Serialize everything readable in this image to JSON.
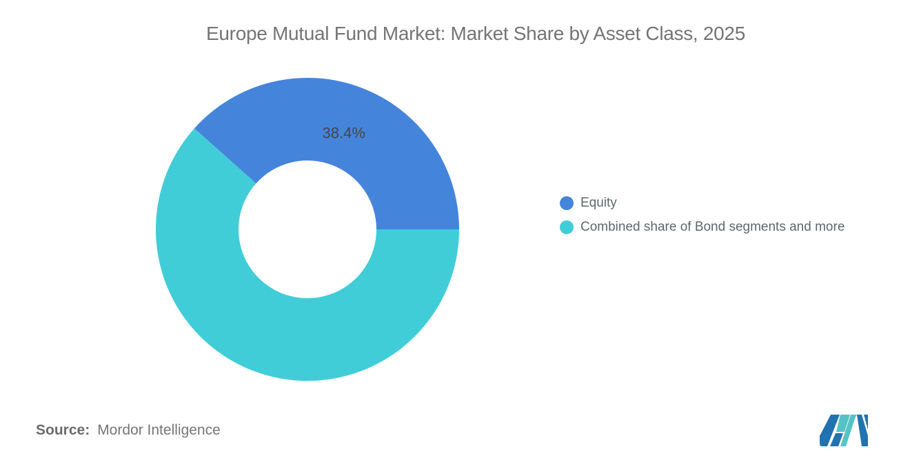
{
  "title": "Europe Mutual Fund Market: Market Share by Asset Class, 2025",
  "chart_data": {
    "type": "pie",
    "subtype": "donut",
    "title": "Europe Mutual Fund Market: Market Share by Asset Class, 2025",
    "categories": [
      "Equity",
      "Combined share of Bond segments and more"
    ],
    "values": [
      38.4,
      61.6
    ],
    "data_labels": [
      "38.4%",
      null
    ],
    "colors": [
      "#4584DB",
      "#41CDD8"
    ],
    "start_angle_deg": -48.24,
    "inner_radius_ratio": 0.455,
    "legend_position": "right",
    "grid": false
  },
  "legend": {
    "items": [
      {
        "label": "Equity",
        "color": "#4584DB"
      },
      {
        "label": "Combined share of Bond segments and more",
        "color": "#41CDD8"
      }
    ]
  },
  "source": {
    "label": "Source:",
    "value": "Mordor Intelligence"
  },
  "logo": {
    "name": "mordor-intelligence-logo",
    "colors": {
      "blue": "#2173AF",
      "teal": "#55C3C6"
    }
  }
}
